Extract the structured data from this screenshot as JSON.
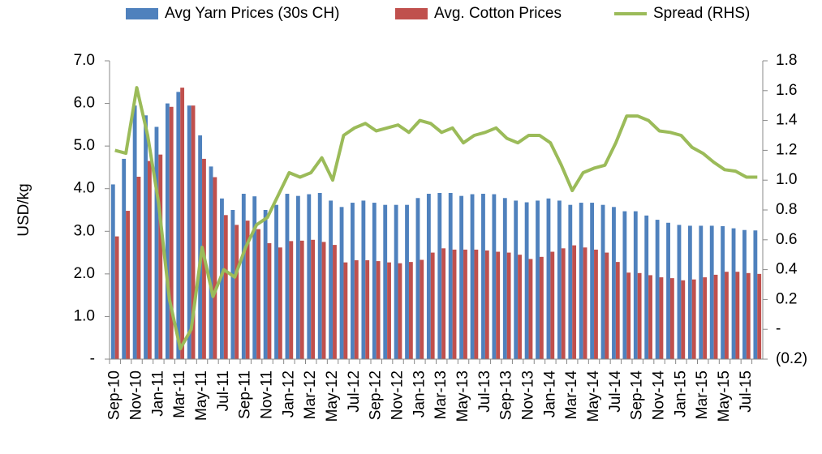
{
  "chart_data": {
    "type": "bar",
    "y_label": "USD/kg",
    "categories": [
      "Sep-10",
      null,
      "Nov-10",
      null,
      "Jan-11",
      null,
      "Mar-11",
      null,
      "May-11",
      null,
      "Jul-11",
      null,
      "Sep-11",
      null,
      "Nov-11",
      null,
      "Jan-12",
      null,
      "Mar-12",
      null,
      "May-12",
      null,
      "Jul-12",
      null,
      "Sep-12",
      null,
      "Nov-12",
      null,
      "Jan-13",
      null,
      "Mar-13",
      null,
      "May-13",
      null,
      "Jul-13",
      null,
      "Sep-13",
      null,
      "Nov-13",
      null,
      "Jan-14",
      null,
      "Mar-14",
      null,
      "May-14",
      null,
      "Jul-14",
      null,
      "Sep-14",
      null,
      "Nov-14",
      null,
      "Jan-15",
      null,
      "Mar-15",
      null,
      "May-15",
      null,
      "Jul-15",
      null
    ],
    "series": [
      {
        "name": "Avg Yarn Prices (30s CH)",
        "color": "#4f81bd",
        "type": "bar",
        "values": [
          4.1,
          4.7,
          5.95,
          5.72,
          5.45,
          6.0,
          6.27,
          5.95,
          5.25,
          4.52,
          3.77,
          3.5,
          3.88,
          3.82,
          3.5,
          3.62,
          3.88,
          3.83,
          3.87,
          3.9,
          3.72,
          3.57,
          3.67,
          3.72,
          3.67,
          3.62,
          3.62,
          3.62,
          3.78,
          3.88,
          3.9,
          3.9,
          3.83,
          3.87,
          3.88,
          3.87,
          3.78,
          3.72,
          3.68,
          3.72,
          3.77,
          3.72,
          3.62,
          3.67,
          3.67,
          3.62,
          3.57,
          3.47,
          3.47,
          3.37,
          3.27,
          3.2,
          3.15,
          3.13,
          3.13,
          3.13,
          3.12,
          3.07,
          3.03,
          3.02
        ]
      },
      {
        "name": "Avg. Cotton Prices",
        "color": "#c0504d",
        "type": "bar",
        "values": [
          2.88,
          3.48,
          4.28,
          4.65,
          4.8,
          5.92,
          6.37,
          5.95,
          4.7,
          4.27,
          3.38,
          3.15,
          3.25,
          3.05,
          2.72,
          2.62,
          2.77,
          2.78,
          2.8,
          2.75,
          2.68,
          2.27,
          2.32,
          2.32,
          2.3,
          2.27,
          2.25,
          2.28,
          2.33,
          2.5,
          2.6,
          2.57,
          2.57,
          2.57,
          2.55,
          2.52,
          2.5,
          2.45,
          2.35,
          2.4,
          2.52,
          2.6,
          2.67,
          2.62,
          2.57,
          2.5,
          2.28,
          2.03,
          2.02,
          1.97,
          1.92,
          1.9,
          1.85,
          1.87,
          1.92,
          1.98,
          2.05,
          2.05,
          2.02,
          2.0
        ]
      },
      {
        "name": "Spread (RHS)",
        "color": "#9bbb59",
        "type": "line",
        "axis": "y2",
        "values": [
          1.2,
          1.18,
          1.62,
          1.3,
          0.85,
          0.2,
          -0.13,
          0.0,
          0.55,
          0.22,
          0.4,
          0.35,
          0.55,
          0.7,
          0.75,
          0.9,
          1.05,
          1.02,
          1.05,
          1.15,
          1.0,
          1.3,
          1.35,
          1.38,
          1.33,
          1.35,
          1.37,
          1.32,
          1.4,
          1.38,
          1.32,
          1.35,
          1.25,
          1.3,
          1.32,
          1.35,
          1.28,
          1.25,
          1.3,
          1.3,
          1.25,
          1.1,
          0.93,
          1.05,
          1.08,
          1.1,
          1.25,
          1.43,
          1.43,
          1.4,
          1.33,
          1.32,
          1.3,
          1.22,
          1.18,
          1.12,
          1.07,
          1.06,
          1.02,
          1.02
        ]
      }
    ],
    "ylim": [
      0,
      7
    ],
    "yticks": [
      {
        "value": 0,
        "label": "-"
      },
      {
        "value": 1,
        "label": "1.0"
      },
      {
        "value": 2,
        "label": "2.0"
      },
      {
        "value": 3,
        "label": "3.0"
      },
      {
        "value": 4,
        "label": "4.0"
      },
      {
        "value": 5,
        "label": "5.0"
      },
      {
        "value": 6,
        "label": "6.0"
      },
      {
        "value": 7,
        "label": "7.0"
      }
    ],
    "y2lim": [
      -0.2,
      1.8
    ],
    "y2ticks": [
      {
        "value": -0.2,
        "label": "(0.2)"
      },
      {
        "value": 0,
        "label": "-"
      },
      0.2,
      0.4,
      0.6,
      0.8,
      {
        "value": 1,
        "label": "1.0"
      },
      1.2,
      1.4,
      1.6,
      1.8
    ],
    "legend": "top",
    "grid": false
  }
}
